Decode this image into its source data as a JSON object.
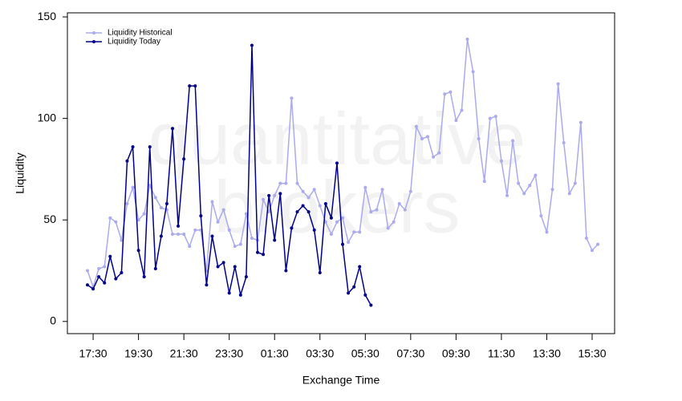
{
  "chart_data": {
    "type": "line",
    "x_label": "Exchange Time",
    "y_label": "Liquidity",
    "watermark": [
      "quantitative",
      "brokers"
    ],
    "legend": "top-left",
    "categories": [
      null,
      "17:30",
      null,
      null,
      null,
      null,
      null,
      null,
      null,
      "19:30",
      null,
      null,
      null,
      null,
      null,
      null,
      null,
      "21:30",
      null,
      null,
      null,
      null,
      null,
      null,
      null,
      "23:30",
      null,
      null,
      null,
      null,
      null,
      null,
      null,
      "01:30",
      null,
      null,
      null,
      null,
      null,
      null,
      null,
      "03:30",
      null,
      null,
      null,
      null,
      null,
      null,
      null,
      "05:30",
      null,
      null,
      null,
      null,
      null,
      null,
      null,
      "07:30",
      null,
      null,
      null,
      null,
      null,
      null,
      null,
      "09:30",
      null,
      null,
      null,
      null,
      null,
      null,
      null,
      "11:30",
      null,
      null,
      null,
      null,
      null,
      null,
      null,
      "13:30",
      null,
      null,
      null,
      null,
      null,
      null,
      null,
      "15:30",
      null
    ],
    "series": [
      {
        "name": "Liquidity Historical",
        "color": "#aaaaee",
        "values": [
          25,
          17,
          26,
          27,
          51,
          49,
          40,
          58,
          66,
          50,
          53,
          67,
          61,
          56,
          55,
          43,
          43,
          43,
          37,
          45,
          45,
          25,
          59,
          49,
          55,
          45,
          37,
          38,
          53,
          41,
          40,
          60,
          54,
          62,
          68,
          68,
          110,
          68,
          64,
          61,
          65,
          57,
          49,
          43,
          49,
          51,
          39,
          44,
          44,
          66,
          54,
          55,
          65,
          46,
          49,
          58,
          55,
          64,
          96,
          90,
          91,
          81,
          83,
          112,
          113,
          99,
          104,
          139,
          123,
          90,
          69,
          100,
          101,
          79,
          62,
          89,
          68,
          63,
          67,
          72,
          52,
          44,
          65,
          117,
          88,
          63,
          68,
          98,
          41,
          35,
          38
        ]
      },
      {
        "name": "Liquidity Today",
        "color": "#00008b",
        "values": [
          18,
          16,
          22,
          19,
          32,
          21,
          24,
          79,
          86,
          35,
          22,
          86,
          26,
          42,
          58,
          95,
          47,
          80,
          116,
          116,
          52,
          18,
          42,
          27,
          29,
          14,
          27,
          13,
          22,
          136,
          34,
          33,
          62,
          40,
          63,
          25,
          46,
          54,
          57,
          54,
          45,
          24,
          58,
          51,
          78,
          38,
          14,
          17,
          27,
          13,
          8,
          null,
          null,
          null,
          null,
          null,
          null,
          null,
          null,
          null,
          null,
          null,
          null,
          null,
          null,
          null,
          null,
          null,
          null,
          null,
          null,
          null,
          null,
          null,
          null,
          null,
          null,
          null,
          null,
          null,
          null,
          null,
          null,
          null,
          null,
          null,
          null,
          null,
          null,
          null,
          null
        ]
      }
    ],
    "ylim": [
      -6,
      152
    ],
    "yticks": [
      0,
      50,
      100,
      150
    ]
  }
}
